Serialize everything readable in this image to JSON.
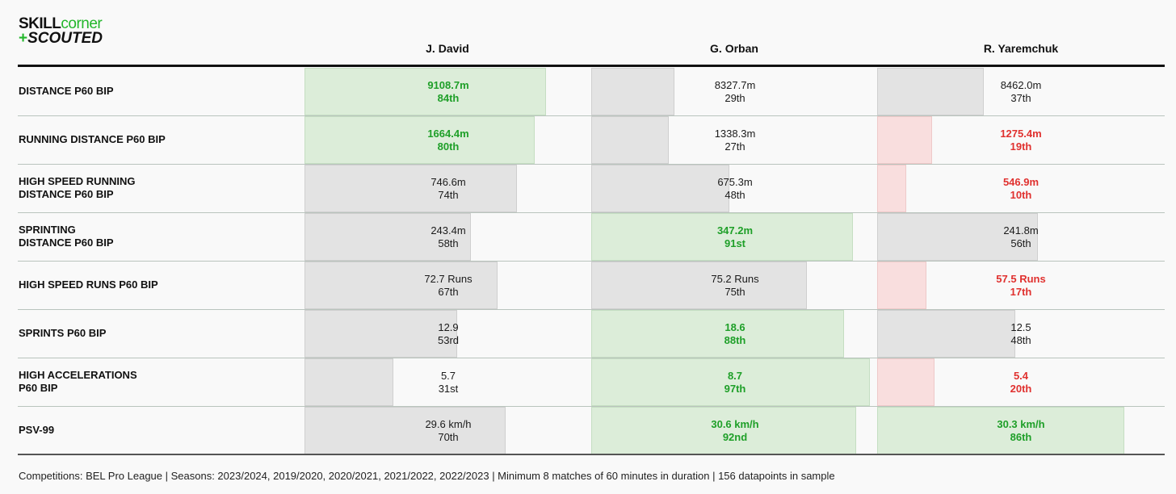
{
  "logo": {
    "part1": "SKILL",
    "part2": "corner",
    "plus": "+",
    "part3": "SCOUTED"
  },
  "players": [
    "J. David",
    "G. Orban",
    "R. Yaremchuk"
  ],
  "footer": "Competitions: BEL Pro League | Seasons: 2023/2024, 2019/2020, 2020/2021, 2021/2022, 2022/2023 | Minimum 8 matches of 60 minutes in duration | 156 datapoints in sample",
  "colors": {
    "good_text": "#1e9f28",
    "bad_text": "#e0312f",
    "good_fill": "#dcedd9",
    "bad_fill": "#f9dede",
    "neutral_fill": "#e3e3e3"
  },
  "chart_data": {
    "type": "table",
    "columns": [
      "J. David",
      "G. Orban",
      "R. Yaremchuk"
    ],
    "rows": [
      {
        "metric": "DISTANCE P60 BIP",
        "cells": [
          {
            "value": "9108.7m",
            "rank": "84th",
            "percentile": 84,
            "status": "good"
          },
          {
            "value": "8327.7m",
            "rank": "29th",
            "percentile": 29,
            "status": "neutral"
          },
          {
            "value": "8462.0m",
            "rank": "37th",
            "percentile": 37,
            "status": "neutral"
          }
        ]
      },
      {
        "metric": "RUNNING DISTANCE P60 BIP",
        "cells": [
          {
            "value": "1664.4m",
            "rank": "80th",
            "percentile": 80,
            "status": "good"
          },
          {
            "value": "1338.3m",
            "rank": "27th",
            "percentile": 27,
            "status": "neutral"
          },
          {
            "value": "1275.4m",
            "rank": "19th",
            "percentile": 19,
            "status": "bad"
          }
        ]
      },
      {
        "metric": "HIGH SPEED RUNNING\nDISTANCE P60 BIP",
        "cells": [
          {
            "value": "746.6m",
            "rank": "74th",
            "percentile": 74,
            "status": "neutral"
          },
          {
            "value": "675.3m",
            "rank": "48th",
            "percentile": 48,
            "status": "neutral"
          },
          {
            "value": "546.9m",
            "rank": "10th",
            "percentile": 10,
            "status": "bad"
          }
        ]
      },
      {
        "metric": "SPRINTING\nDISTANCE P60 BIP",
        "cells": [
          {
            "value": "243.4m",
            "rank": "58th",
            "percentile": 58,
            "status": "neutral"
          },
          {
            "value": "347.2m",
            "rank": "91st",
            "percentile": 91,
            "status": "good"
          },
          {
            "value": "241.8m",
            "rank": "56th",
            "percentile": 56,
            "status": "neutral"
          }
        ]
      },
      {
        "metric": "HIGH SPEED RUNS P60 BIP",
        "cells": [
          {
            "value": "72.7 Runs",
            "rank": "67th",
            "percentile": 67,
            "status": "neutral"
          },
          {
            "value": "75.2 Runs",
            "rank": "75th",
            "percentile": 75,
            "status": "neutral"
          },
          {
            "value": "57.5 Runs",
            "rank": "17th",
            "percentile": 17,
            "status": "bad"
          }
        ]
      },
      {
        "metric": "SPRINTS P60 BIP",
        "cells": [
          {
            "value": "12.9",
            "rank": "53rd",
            "percentile": 53,
            "status": "neutral"
          },
          {
            "value": "18.6",
            "rank": "88th",
            "percentile": 88,
            "status": "good"
          },
          {
            "value": "12.5",
            "rank": "48th",
            "percentile": 48,
            "status": "neutral"
          }
        ]
      },
      {
        "metric": "HIGH ACCELERATIONS\nP60 BIP",
        "cells": [
          {
            "value": "5.7",
            "rank": "31st",
            "percentile": 31,
            "status": "neutral"
          },
          {
            "value": "8.7",
            "rank": "97th",
            "percentile": 97,
            "status": "good"
          },
          {
            "value": "5.4",
            "rank": "20th",
            "percentile": 20,
            "status": "bad"
          }
        ]
      },
      {
        "metric": "PSV-99",
        "cells": [
          {
            "value": "29.6 km/h",
            "rank": "70th",
            "percentile": 70,
            "status": "neutral"
          },
          {
            "value": "30.6 km/h",
            "rank": "92nd",
            "percentile": 92,
            "status": "good"
          },
          {
            "value": "30.3 km/h",
            "rank": "86th",
            "percentile": 86,
            "status": "good"
          }
        ]
      }
    ]
  }
}
